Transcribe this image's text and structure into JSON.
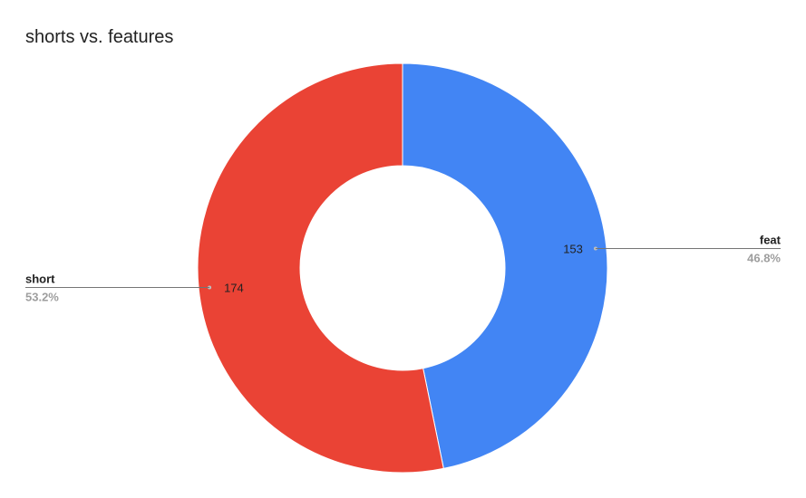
{
  "chart_data": {
    "type": "pie",
    "title": "shorts vs. features",
    "donut": true,
    "legend": "none",
    "slices": [
      {
        "name": "feat",
        "value": 153,
        "percent": "46.8%",
        "color": "#4285f4"
      },
      {
        "name": "short",
        "value": 174,
        "percent": "53.2%",
        "color": "#ea4335"
      }
    ]
  }
}
